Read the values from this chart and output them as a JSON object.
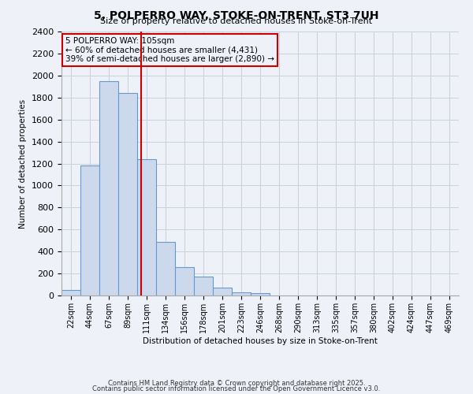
{
  "title": "5, POLPERRO WAY, STOKE-ON-TRENT, ST3 7UH",
  "subtitle": "Size of property relative to detached houses in Stoke-on-Trent",
  "xlabel": "Distribution of detached houses by size in Stoke-on-Trent",
  "ylabel": "Number of detached properties",
  "bin_labels": [
    "22sqm",
    "44sqm",
    "67sqm",
    "89sqm",
    "111sqm",
    "134sqm",
    "156sqm",
    "178sqm",
    "201sqm",
    "223sqm",
    "246sqm",
    "268sqm",
    "290sqm",
    "313sqm",
    "335sqm",
    "357sqm",
    "380sqm",
    "402sqm",
    "424sqm",
    "447sqm",
    "469sqm"
  ],
  "bar_values": [
    50,
    1180,
    1950,
    1840,
    1240,
    490,
    260,
    170,
    70,
    30,
    20,
    0,
    0,
    0,
    0,
    0,
    0,
    0,
    0,
    0,
    0
  ],
  "bar_color": "#ccd9ed",
  "bar_edgecolor": "#6699cc",
  "ylim": [
    0,
    2400
  ],
  "yticks": [
    0,
    200,
    400,
    600,
    800,
    1000,
    1200,
    1400,
    1600,
    1800,
    2000,
    2200,
    2400
  ],
  "red_line_x": 3.7,
  "annotation_line1": "5 POLPERRO WAY: 105sqm",
  "annotation_line2": "← 60% of detached houses are smaller (4,431)",
  "annotation_line3": "39% of semi-detached houses are larger (2,890) →",
  "footer_line1": "Contains HM Land Registry data © Crown copyright and database right 2025.",
  "footer_line2": "Contains public sector information licensed under the Open Government Licence v3.0.",
  "red_line_color": "#cc0000",
  "annotation_box_edgecolor": "#cc0000",
  "background_color": "#eef2f8",
  "plot_bg_color": "#eef2f8",
  "title_fontsize": 10,
  "subtitle_fontsize": 8
}
